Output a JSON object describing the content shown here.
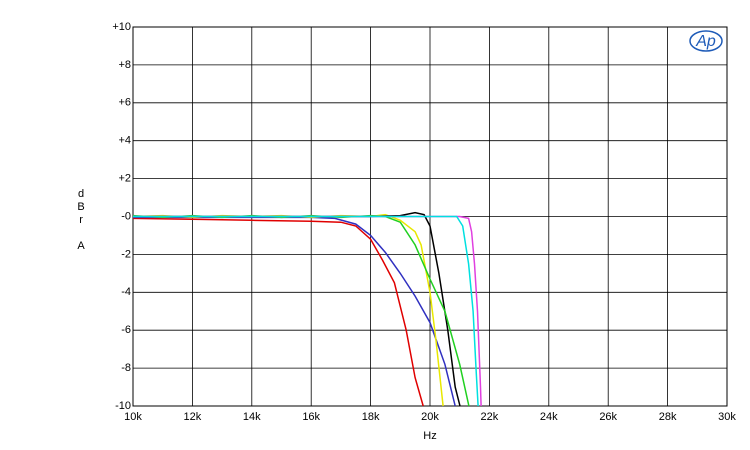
{
  "chart_data": {
    "type": "line",
    "xlabel": "Hz",
    "ylabel": "dBr A",
    "logo": "Ap",
    "xlim": [
      10000,
      30000
    ],
    "xticks": [
      {
        "value": 10000,
        "label": "10k"
      },
      {
        "value": 12000,
        "label": "12k"
      },
      {
        "value": 14000,
        "label": "14k"
      },
      {
        "value": 16000,
        "label": "16k"
      },
      {
        "value": 18000,
        "label": "18k"
      },
      {
        "value": 20000,
        "label": "20k"
      },
      {
        "value": 22000,
        "label": "22k"
      },
      {
        "value": 24000,
        "label": "24k"
      },
      {
        "value": 26000,
        "label": "26k"
      },
      {
        "value": 28000,
        "label": "28k"
      },
      {
        "value": 30000,
        "label": "30k"
      }
    ],
    "ylim": [
      -10,
      10
    ],
    "yticks": [
      {
        "value": 10,
        "label": "+10"
      },
      {
        "value": 8,
        "label": "+8"
      },
      {
        "value": 6,
        "label": "+6"
      },
      {
        "value": 4,
        "label": "+4"
      },
      {
        "value": 2,
        "label": "+2"
      },
      {
        "value": 0,
        "label": "-0"
      },
      -2,
      -4,
      -6,
      -8,
      -10
    ],
    "grid": true,
    "series": [
      {
        "color": "#e00000",
        "x": [
          10000,
          12000,
          14000,
          16000,
          17000,
          17500,
          18000,
          18400,
          18800,
          19200,
          19500,
          19770
        ],
        "values": [
          -0.1,
          -0.15,
          -0.2,
          -0.25,
          -0.3,
          -0.5,
          -1.2,
          -2.3,
          -3.5,
          -6,
          -8.5,
          -10
        ]
      },
      {
        "color": "#3030c0",
        "x": [
          10000,
          12000,
          14000,
          16000,
          16800,
          17500,
          18000,
          18500,
          19000,
          19500,
          20000,
          20500,
          20850
        ],
        "values": [
          -0.05,
          -0.05,
          -0.05,
          -0.05,
          -0.1,
          -0.4,
          -1.0,
          -1.9,
          -3.0,
          -4.2,
          -5.6,
          -7.8,
          -10
        ]
      },
      {
        "color": "#e8e800",
        "x": [
          10000,
          11000,
          12000,
          13000,
          14000,
          15000,
          16000,
          17000,
          18000,
          18500,
          19000,
          19500,
          19700,
          20000,
          20200,
          20440
        ],
        "values": [
          0,
          0.05,
          -0.05,
          0.05,
          0,
          0.05,
          -0.05,
          0.05,
          0,
          0.1,
          -0.2,
          -0.8,
          -1.5,
          -4,
          -6.5,
          -10
        ]
      },
      {
        "color": "#000000",
        "x": [
          10000,
          14000,
          18000,
          19000,
          19500,
          19800,
          20000,
          20300,
          20600,
          20850,
          21010
        ],
        "values": [
          0,
          0,
          0,
          0.05,
          0.2,
          0.1,
          -0.5,
          -3,
          -6,
          -9,
          -10
        ]
      },
      {
        "color": "#20d020",
        "x": [
          10000,
          11000,
          12000,
          13000,
          14000,
          15000,
          16000,
          17000,
          18000,
          18500,
          19000,
          19500,
          20000,
          20500,
          21000,
          21310
        ],
        "values": [
          0.05,
          -0.05,
          0.05,
          -0.05,
          0.05,
          -0.05,
          0.05,
          -0.05,
          0.05,
          0,
          -0.3,
          -1.5,
          -3.3,
          -5,
          -7.8,
          -10
        ]
      },
      {
        "color": "#e040e0",
        "x": [
          10000,
          15000,
          20000,
          21000,
          21300,
          21400,
          21500,
          21600,
          21700,
          21720
        ],
        "values": [
          0,
          0,
          0,
          0,
          -0.1,
          -0.8,
          -2.5,
          -5,
          -9,
          -10
        ]
      },
      {
        "color": "#00e0e0",
        "x": [
          10000,
          15000,
          20000,
          20900,
          21100,
          21300,
          21450,
          21550,
          21620
        ],
        "values": [
          0,
          0,
          0,
          0,
          -0.5,
          -2.5,
          -5,
          -8,
          -10
        ]
      }
    ]
  }
}
